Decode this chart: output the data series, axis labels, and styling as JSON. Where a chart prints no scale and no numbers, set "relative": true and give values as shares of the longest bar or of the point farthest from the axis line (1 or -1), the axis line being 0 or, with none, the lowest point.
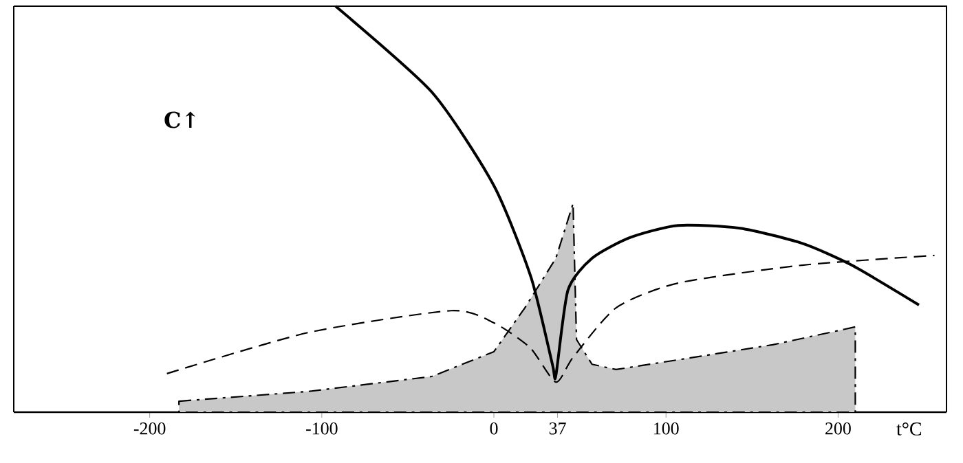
{
  "chart_data": {
    "type": "line",
    "relative": true,
    "xlabel": "t°C",
    "ylabel": "C↑",
    "xlim": [
      -279,
      263
    ],
    "xticks": [
      -200,
      -100,
      0,
      37,
      100,
      200
    ],
    "grid": false,
    "marker": "none",
    "series": [
      {
        "color": "#000000",
        "line_style": "solid",
        "x": [
          -92,
          -36,
          0,
          21.6,
          34,
          36,
          43,
          57,
          79,
          107,
          143,
          179,
          208,
          247
        ],
        "values": [
          1.0,
          0.788,
          0.558,
          0.332,
          0.118,
          0.09,
          0.3,
          0.379,
          0.43,
          0.46,
          0.453,
          0.416,
          0.362,
          0.264
        ]
      },
      {
        "color": "#000000",
        "line_style": "dashed",
        "x": [
          -190,
          -108,
          -25,
          0,
          21,
          36,
          46,
          71,
          107,
          179,
          256
        ],
        "values": [
          0.095,
          0.196,
          0.25,
          0.22,
          0.159,
          0.074,
          0.135,
          0.257,
          0.318,
          0.362,
          0.386
        ]
      },
      {
        "type": "area",
        "color": "#c8c8c8",
        "line_style": "dashdot",
        "x": [
          -183,
          -108,
          -36,
          0,
          18,
          36,
          46,
          48,
          57,
          71,
          107,
          162,
          210
        ],
        "values": [
          0.027,
          0.051,
          0.088,
          0.149,
          0.257,
          0.379,
          0.514,
          0.179,
          0.118,
          0.105,
          0.129,
          0.166,
          0.21
        ]
      }
    ]
  }
}
